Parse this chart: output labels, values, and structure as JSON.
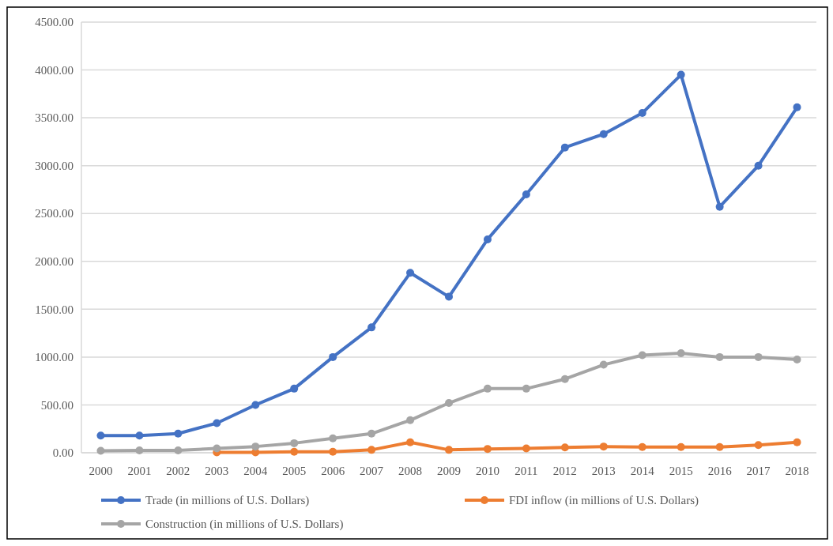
{
  "chart_data": {
    "type": "line",
    "categories": [
      "2000",
      "2001",
      "2002",
      "2003",
      "2004",
      "2005",
      "2006",
      "2007",
      "2008",
      "2009",
      "2010",
      "2011",
      "2012",
      "2013",
      "2014",
      "2015",
      "2016",
      "2017",
      "2018"
    ],
    "series": [
      {
        "name": "Trade (in millions of U.S. Dollars)",
        "color": "#4472c4",
        "values": [
          180,
          180,
          200,
          310,
          500,
          670,
          1000,
          1310,
          1880,
          1630,
          2230,
          2700,
          3190,
          3330,
          3550,
          3950,
          2570,
          3000,
          3610
        ]
      },
      {
        "name": "FDI inflow (in millions of U.S. Dollars)",
        "color": "#ed7d31",
        "values": [
          null,
          null,
          null,
          5,
          5,
          10,
          10,
          30,
          110,
          30,
          40,
          45,
          55,
          65,
          60,
          60,
          60,
          80,
          110
        ]
      },
      {
        "name": "Construction (in millions of U.S. Dollars)",
        "color": "#a5a5a5",
        "values": [
          20,
          25,
          25,
          45,
          65,
          100,
          150,
          200,
          340,
          520,
          670,
          670,
          770,
          920,
          1020,
          1040,
          1000,
          1000,
          975
        ]
      }
    ],
    "ylim": [
      0,
      4500
    ],
    "yticks": [
      {
        "value": 0,
        "label": "0.00"
      },
      {
        "value": 500,
        "label": "500.00"
      },
      {
        "value": 1000,
        "label": "1000.00"
      },
      {
        "value": 1500,
        "label": "1500.00"
      },
      {
        "value": 2000,
        "label": "2000.00"
      },
      {
        "value": 2500,
        "label": "2500.00"
      },
      {
        "value": 3000,
        "label": "3000.00"
      },
      {
        "value": 3500,
        "label": "3500.00"
      },
      {
        "value": 4000,
        "label": "4000.00"
      },
      {
        "value": 4500,
        "label": "4500.00"
      }
    ],
    "grid": "y",
    "legend": "bottom",
    "marker": "circle",
    "line_style": "solid"
  }
}
